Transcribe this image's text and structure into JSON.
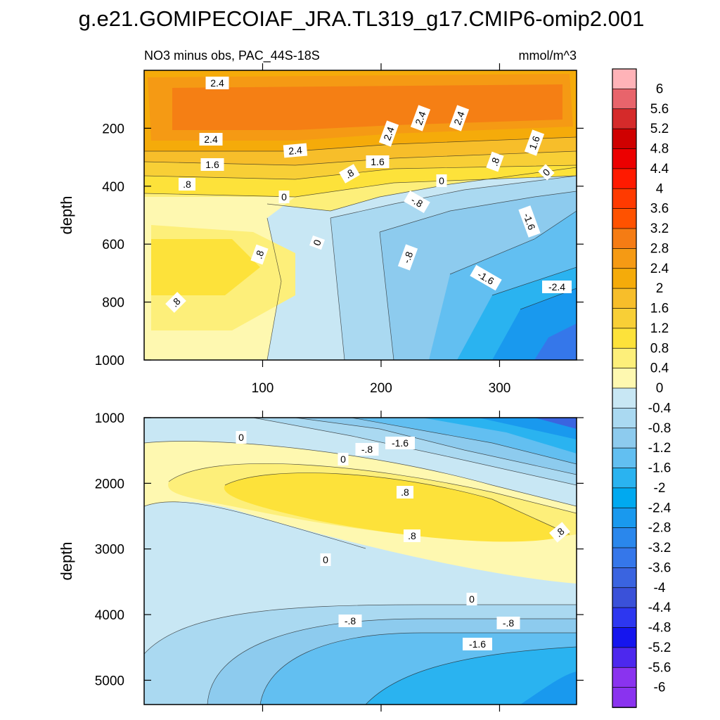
{
  "title": "g.e21.GOMIPECOIAF_JRA.TL319_g17.CMIP6-omip2.001",
  "chart_data": {
    "type": "heatmap",
    "subtitle_left": "NO3 minus obs, PAC_44S-18S",
    "subtitle_right": "mmol/m^3",
    "xlim": [
      0,
      365
    ],
    "x_ticks": [
      100,
      200,
      300
    ],
    "x_tick_labels": [
      "100",
      "200",
      "300"
    ],
    "colorbar": {
      "levels": [
        "6",
        "5.6",
        "5.2",
        "4.8",
        "4.4",
        "4",
        "3.6",
        "3.2",
        "2.8",
        "2.4",
        "2",
        "1.6",
        "1.2",
        "0.8",
        "0.4",
        "0",
        "-0.4",
        "-0.8",
        "-1.2",
        "-1.6",
        "-2",
        "-2.4",
        "-2.8",
        "-3.2",
        "-3.6",
        "-4",
        "-4.4",
        "-4.8",
        "-5.2",
        "-5.6",
        "-6"
      ],
      "colors": [
        "#ffb3b8",
        "#e8646b",
        "#d52a2a",
        "#cf0000",
        "#ec0000",
        "#ff1a00",
        "#ff3a00",
        "#ff5200",
        "#f57c14",
        "#f59a14",
        "#f5ab0a",
        "#f7be2a",
        "#f8cf36",
        "#fde23a",
        "#fdef7a",
        "#fef8b0",
        "#c8e7f4",
        "#aad9f1",
        "#8dcbee",
        "#62bff1",
        "#2ab3f0",
        "#00a9f0",
        "#1999ee",
        "#2a87ec",
        "#3577ea",
        "#3a64e0",
        "#3a51d9",
        "#2d37f0",
        "#1515ee",
        "#4d28ee",
        "#8a33ef"
      ]
    },
    "upper_panel": {
      "ylabel": "depth",
      "ylim": [
        1000,
        0
      ],
      "y_ticks": [
        200,
        400,
        600,
        800,
        1000
      ],
      "y_tick_labels": [
        "200",
        "400",
        "600",
        "800",
        "1000"
      ],
      "contour_labels": [
        "2.4",
        "2.4",
        "2.4",
        "2.4",
        "2.4",
        "2.4",
        "1.6",
        "1.6",
        "1.6",
        ".8",
        ".8",
        ".8",
        ".8",
        ".8",
        "0",
        "0",
        "0",
        "0",
        "-.8",
        "-.8",
        "-1.6",
        "-1.6",
        "-2.4"
      ]
    },
    "lower_panel": {
      "ylabel": "depth",
      "ylim": [
        5370,
        1000
      ],
      "y_ticks": [
        1000,
        2000,
        3000,
        4000,
        5000
      ],
      "y_tick_labels": [
        "1000",
        "2000",
        "3000",
        "4000",
        "5000"
      ],
      "contour_labels": [
        "0",
        "0",
        "0",
        "0",
        "-.8",
        "-.8",
        "-.8",
        "-1.6",
        "-1.6",
        ".8",
        ".8",
        ".8"
      ]
    }
  }
}
